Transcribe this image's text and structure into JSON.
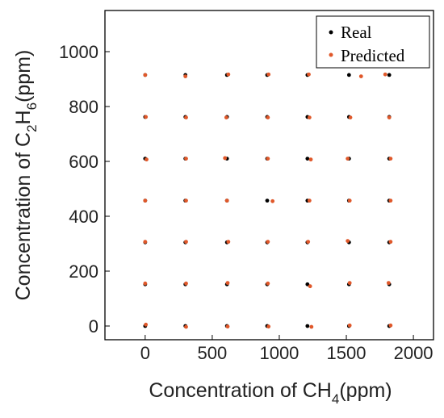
{
  "chart_data": {
    "type": "scatter",
    "xlabel": {
      "prefix": "Concentration of CH",
      "sub": "4",
      "suffix": "(ppm)"
    },
    "ylabel": {
      "prefix": "Concentration of C",
      "sub1": "2",
      "mid": "H",
      "sub2": "6",
      "suffix": "(ppm)"
    },
    "xlim": [
      -300,
      2150
    ],
    "ylim": [
      -50,
      1150
    ],
    "xticks": [
      0,
      500,
      1000,
      1500,
      2000
    ],
    "yticks": [
      0,
      200,
      400,
      600,
      800,
      1000
    ],
    "xtick_labels": [
      "0",
      "500",
      "1000",
      "1500",
      "2000"
    ],
    "ytick_labels": [
      "0",
      "200",
      "400",
      "600",
      "800",
      "1000"
    ],
    "grid": false,
    "legend": {
      "placement": "top-right"
    },
    "series": [
      {
        "name": "Real",
        "color": "#000000",
        "points": [
          [
            0,
            0
          ],
          [
            300,
            0
          ],
          [
            610,
            0
          ],
          [
            910,
            0
          ],
          [
            1210,
            0
          ],
          [
            1520,
            0
          ],
          [
            1820,
            0
          ],
          [
            0,
            152
          ],
          [
            300,
            152
          ],
          [
            610,
            152
          ],
          [
            910,
            152
          ],
          [
            1210,
            152
          ],
          [
            1520,
            152
          ],
          [
            1820,
            152
          ],
          [
            0,
            305
          ],
          [
            300,
            305
          ],
          [
            610,
            305
          ],
          [
            910,
            305
          ],
          [
            1210,
            305
          ],
          [
            1520,
            305
          ],
          [
            1820,
            305
          ],
          [
            0,
            457
          ],
          [
            300,
            457
          ],
          [
            610,
            457
          ],
          [
            910,
            457
          ],
          [
            1210,
            457
          ],
          [
            1520,
            457
          ],
          [
            1820,
            457
          ],
          [
            0,
            610
          ],
          [
            300,
            610
          ],
          [
            610,
            610
          ],
          [
            910,
            610
          ],
          [
            1210,
            610
          ],
          [
            1520,
            610
          ],
          [
            1820,
            610
          ],
          [
            0,
            762
          ],
          [
            300,
            762
          ],
          [
            610,
            762
          ],
          [
            910,
            762
          ],
          [
            1210,
            762
          ],
          [
            1520,
            762
          ],
          [
            1820,
            762
          ],
          [
            0,
            915
          ],
          [
            300,
            915
          ],
          [
            610,
            915
          ],
          [
            910,
            915
          ],
          [
            1210,
            915
          ],
          [
            1520,
            915
          ],
          [
            1820,
            915
          ]
        ]
      },
      {
        "name": "Predicted",
        "color": "#E0582A",
        "points": [
          [
            5,
            5
          ],
          [
            305,
            -3
          ],
          [
            615,
            -2
          ],
          [
            920,
            -2
          ],
          [
            1240,
            -3
          ],
          [
            1525,
            2
          ],
          [
            1830,
            2
          ],
          [
            0,
            155
          ],
          [
            305,
            155
          ],
          [
            615,
            157
          ],
          [
            915,
            155
          ],
          [
            1230,
            145
          ],
          [
            1525,
            157
          ],
          [
            1815,
            157
          ],
          [
            0,
            307
          ],
          [
            305,
            307
          ],
          [
            620,
            307
          ],
          [
            915,
            307
          ],
          [
            1215,
            307
          ],
          [
            1510,
            310
          ],
          [
            1830,
            307
          ],
          [
            0,
            457
          ],
          [
            305,
            457
          ],
          [
            610,
            457
          ],
          [
            950,
            455
          ],
          [
            1225,
            457
          ],
          [
            1525,
            457
          ],
          [
            1830,
            457
          ],
          [
            10,
            607
          ],
          [
            305,
            610
          ],
          [
            595,
            612
          ],
          [
            915,
            610
          ],
          [
            1235,
            607
          ],
          [
            1510,
            610
          ],
          [
            1830,
            610
          ],
          [
            5,
            762
          ],
          [
            305,
            760
          ],
          [
            605,
            760
          ],
          [
            915,
            760
          ],
          [
            1225,
            760
          ],
          [
            1530,
            760
          ],
          [
            1820,
            760
          ],
          [
            0,
            915
          ],
          [
            300,
            910
          ],
          [
            620,
            917
          ],
          [
            920,
            917
          ],
          [
            1220,
            917
          ],
          [
            1610,
            910
          ],
          [
            1790,
            917
          ]
        ]
      }
    ]
  }
}
